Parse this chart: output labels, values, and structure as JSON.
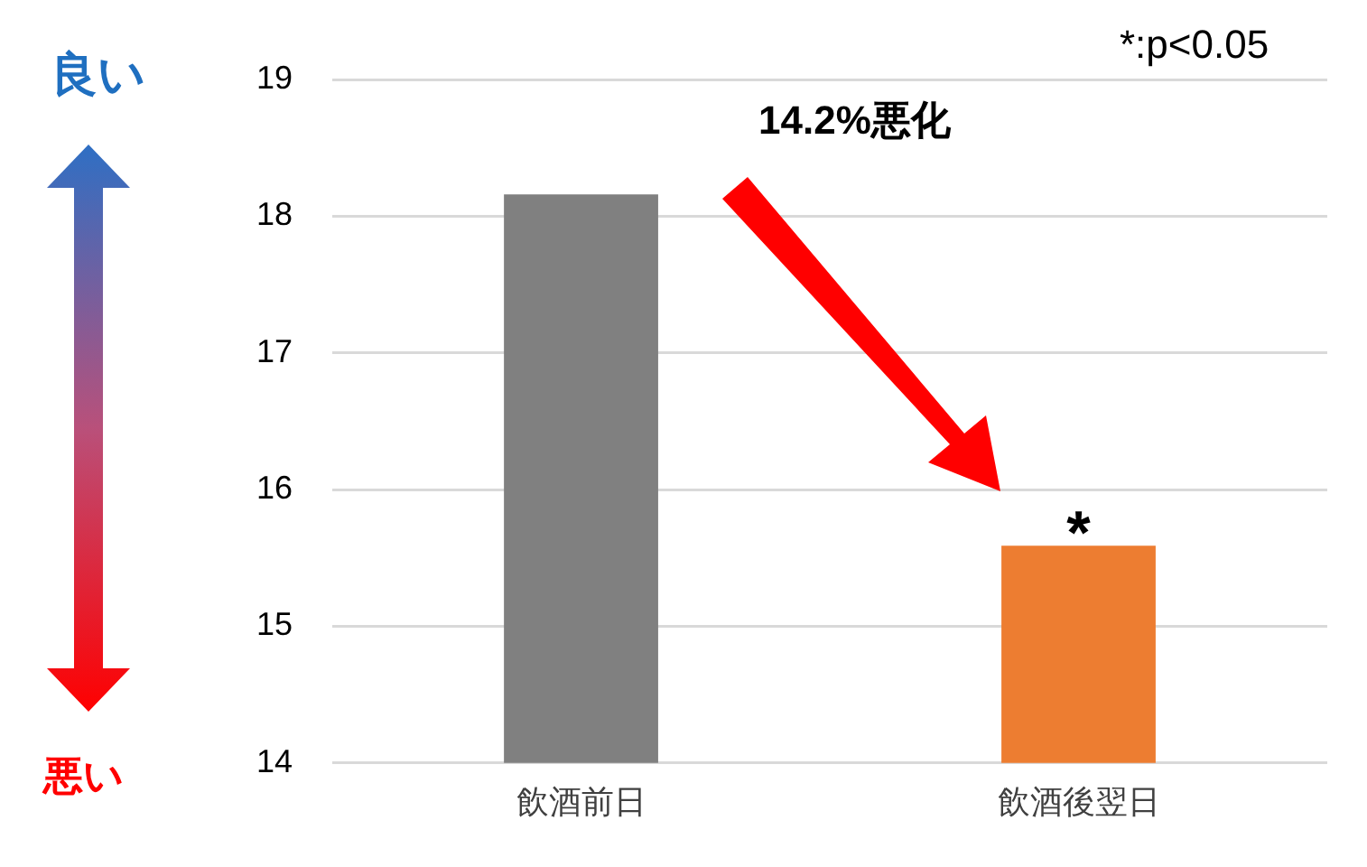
{
  "chart_data": {
    "type": "bar",
    "categories": [
      "飲酒前日",
      "飲酒後翌日"
    ],
    "values": [
      18.16,
      15.59
    ],
    "colors": [
      "#808080",
      "#ed7d31"
    ],
    "ylim": [
      14,
      19
    ],
    "yticks": [
      14,
      15,
      16,
      17,
      18,
      19
    ],
    "grid": "y",
    "legend": false,
    "annotations": [
      "*:p<0.05",
      "良い",
      "悪い",
      "14.2%悪化",
      {
        "text": "*",
        "x": "飲酒後翌日",
        "y": 15.59
      }
    ]
  }
}
